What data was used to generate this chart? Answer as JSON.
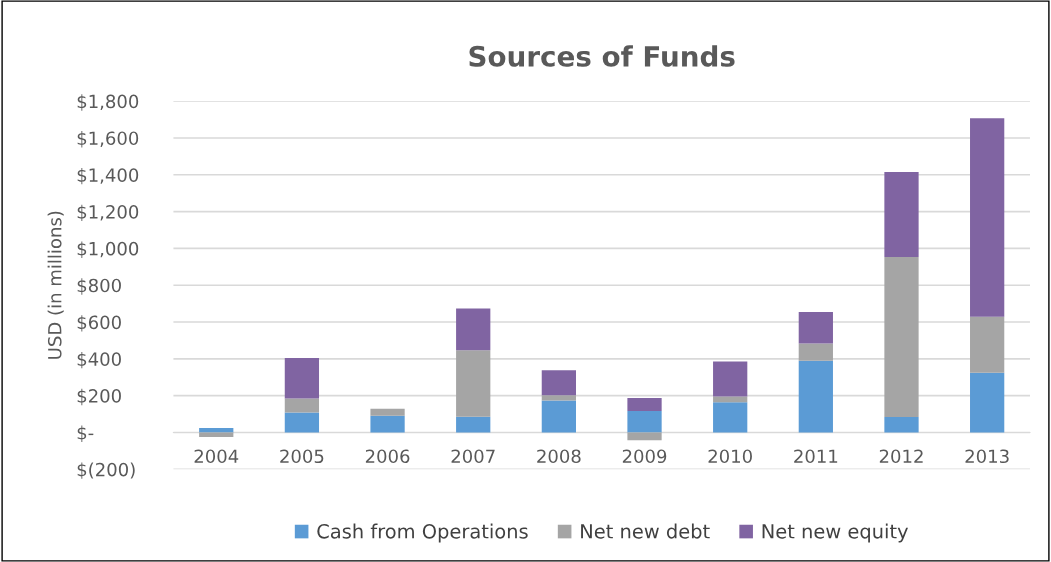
{
  "chart_data": {
    "type": "bar",
    "title": "Sources of Funds",
    "ylabel": "USD (in millions)",
    "categories": [
      "2004",
      "2005",
      "2006",
      "2007",
      "2008",
      "2009",
      "2010",
      "2011",
      "2012",
      "2013"
    ],
    "stacked": true,
    "series": [
      {
        "name": "Cash from Operations",
        "color": "#5b9bd5",
        "values": [
          24,
          109,
          91,
          85,
          173,
          116,
          164,
          389,
          84,
          324
        ]
      },
      {
        "name": "Net new debt",
        "color": "#a5a5a5",
        "values": [
          -24,
          76,
          38,
          362,
          29,
          -42,
          32,
          95,
          869,
          305
        ]
      },
      {
        "name": "Net new equity",
        "color": "#8064a2",
        "values": [
          null,
          220,
          null,
          226,
          136,
          71,
          189,
          171,
          462,
          1078
        ]
      }
    ],
    "ylim": [
      -200,
      1800
    ],
    "yticks": [
      {
        "value": -200,
        "label": "$(200)"
      },
      {
        "value": 0,
        "label": "$-"
      },
      {
        "value": 200,
        "label": "$200"
      },
      {
        "value": 400,
        "label": "$400"
      },
      {
        "value": 600,
        "label": "$600"
      },
      {
        "value": 800,
        "label": "$800"
      },
      {
        "value": 1000,
        "label": "$1,000"
      },
      {
        "value": 1200,
        "label": "$1,200"
      },
      {
        "value": 1400,
        "label": "$1,400"
      },
      {
        "value": 1600,
        "label": "$1,600"
      },
      {
        "value": 1800,
        "label": "$1,800"
      }
    ],
    "grid": "y",
    "legend": "bottom"
  }
}
